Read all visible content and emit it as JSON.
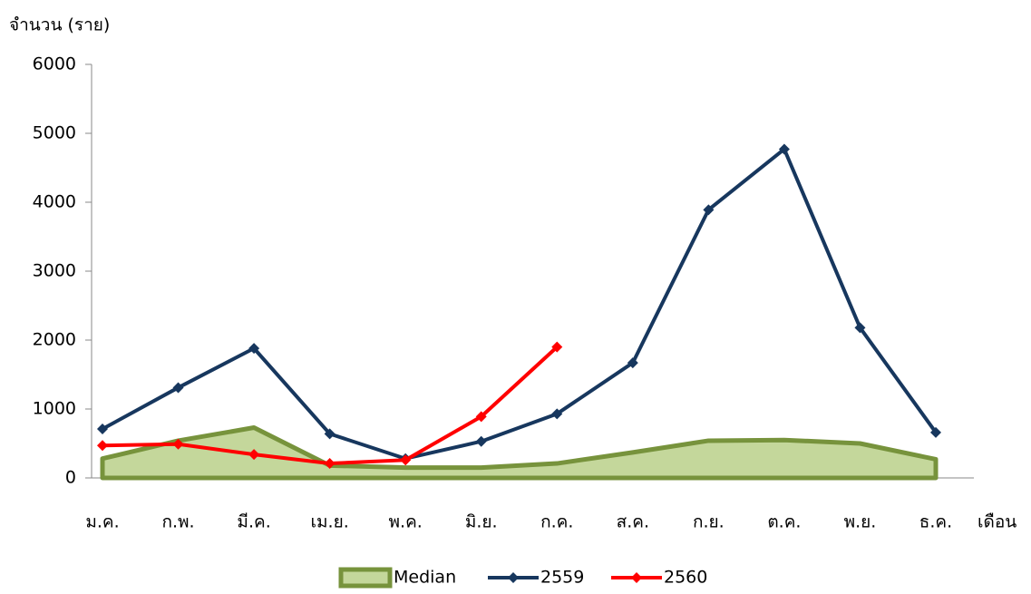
{
  "chart_data": {
    "type": "line",
    "ylabel": "จำนวน (ราย)",
    "xlabel": "เดือน",
    "categories": [
      "ม.ค.",
      "ก.พ.",
      "มี.ค.",
      "เม.ย.",
      "พ.ค.",
      "มิ.ย.",
      "ก.ค.",
      "ส.ค.",
      "ก.ย.",
      "ต.ค.",
      "พ.ย.",
      "ธ.ค."
    ],
    "series": [
      {
        "name": "Median",
        "color": "#77933c",
        "fill": "#c4d79b",
        "area": true,
        "values": [
          280,
          540,
          730,
          180,
          150,
          150,
          210,
          370,
          540,
          550,
          500,
          270
        ]
      },
      {
        "name": "2559",
        "color": "#17375e",
        "values": [
          710,
          1310,
          1880,
          640,
          280,
          530,
          930,
          1670,
          3890,
          4770,
          2180,
          660
        ]
      },
      {
        "name": "2560",
        "color": "#ff0000",
        "values": [
          470,
          490,
          340,
          210,
          260,
          890,
          1900,
          null,
          null,
          null,
          null,
          null
        ]
      }
    ],
    "ylim": [
      0,
      6000
    ],
    "yticks": [
      0,
      1000,
      2000,
      3000,
      4000,
      5000,
      6000
    ]
  }
}
